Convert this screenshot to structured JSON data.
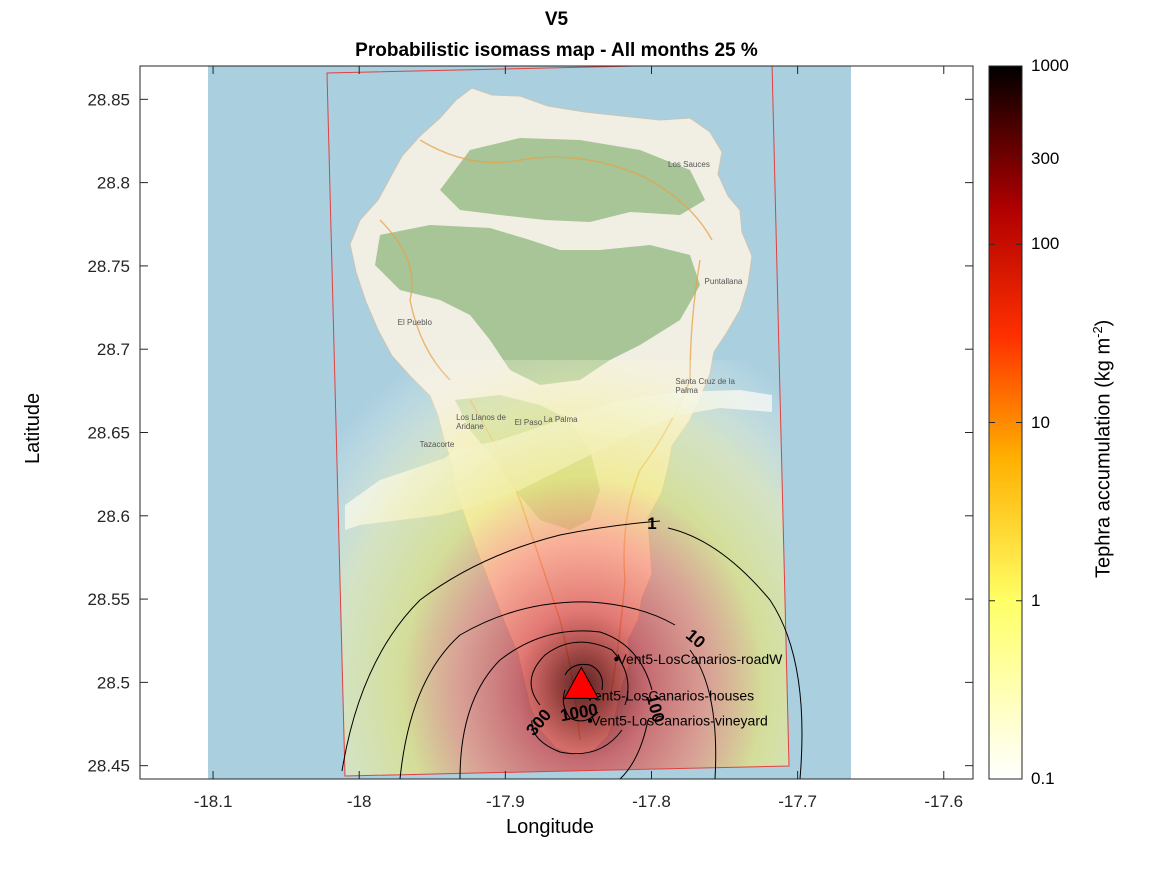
{
  "title": {
    "line1": "V5",
    "line2": "Probabilistic isomass map - All months 25 %"
  },
  "axes": {
    "xlabel": "Longitude",
    "ylabel": "Latitude",
    "xlim": [
      -18.15,
      -17.58
    ],
    "ylim": [
      28.442,
      28.87
    ],
    "xticks": [
      -18.1,
      -18,
      -17.9,
      -17.8,
      -17.7,
      -17.6
    ],
    "xtick_labels": [
      "-18.1",
      "-18",
      "-17.9",
      "-17.8",
      "-17.7",
      "-17.6"
    ],
    "yticks": [
      28.45,
      28.5,
      28.55,
      28.6,
      28.65,
      28.7,
      28.75,
      28.8,
      28.85
    ],
    "ytick_labels": [
      "28.45",
      "28.5",
      "28.55",
      "28.6",
      "28.65",
      "28.7",
      "28.75",
      "28.8",
      "28.85"
    ]
  },
  "colorbar": {
    "label": "Tephra accumulation (kg m",
    "label_sup": "-2",
    "label_close": ")",
    "scale": "log",
    "range": [
      0.1,
      1000
    ],
    "colormap": "hot",
    "ticks": [
      {
        "value": 1000,
        "label": "1000"
      },
      {
        "value": 300,
        "label": "300"
      },
      {
        "value": 100,
        "label": "100"
      },
      {
        "value": 10,
        "label": "10"
      },
      {
        "value": 1,
        "label": "1"
      },
      {
        "value": 0.1,
        "label": "0.1"
      }
    ]
  },
  "vent": {
    "lon": -17.848,
    "lat": 28.497,
    "color": "#ff0000"
  },
  "contours": [
    {
      "level": 1,
      "label": "1"
    },
    {
      "level": 10,
      "label": "10"
    },
    {
      "level": 100,
      "label": "100"
    },
    {
      "level": 300,
      "label": "300"
    },
    {
      "level": 1000,
      "label": "1000"
    }
  ],
  "targets": [
    {
      "name": "Vent5-LosCanarios-roadW",
      "lon": -17.824,
      "lat": 28.514
    },
    {
      "name": "Vent5-LosCanarios-houses",
      "lon": -17.846,
      "lat": 28.492
    },
    {
      "name": "Vent5-LosCanarios-vineyard",
      "lon": -17.842,
      "lat": 28.477
    }
  ],
  "map_labels": [
    {
      "text": "Santa Cruz de la Palma",
      "lon": -17.77,
      "lat": 28.68
    },
    {
      "text": "Los Llanos de Aridane",
      "lon": -17.92,
      "lat": 28.658
    },
    {
      "text": "El Paso",
      "lon": -17.88,
      "lat": 28.655
    },
    {
      "text": "Tazacorte",
      "lon": -17.945,
      "lat": 28.642
    },
    {
      "text": "La Palma",
      "lon": -17.86,
      "lat": 28.657
    },
    {
      "text": "El Pueblo",
      "lon": -17.96,
      "lat": 28.715
    },
    {
      "text": "Los Sauces",
      "lon": -17.775,
      "lat": 28.81
    },
    {
      "text": "Puntallana",
      "lon": -17.75,
      "lat": 28.74
    }
  ],
  "colors": {
    "sea": "#aacfdf",
    "land": "#f1eee4",
    "forest": "#9fc08d",
    "frame": "#e04040"
  }
}
